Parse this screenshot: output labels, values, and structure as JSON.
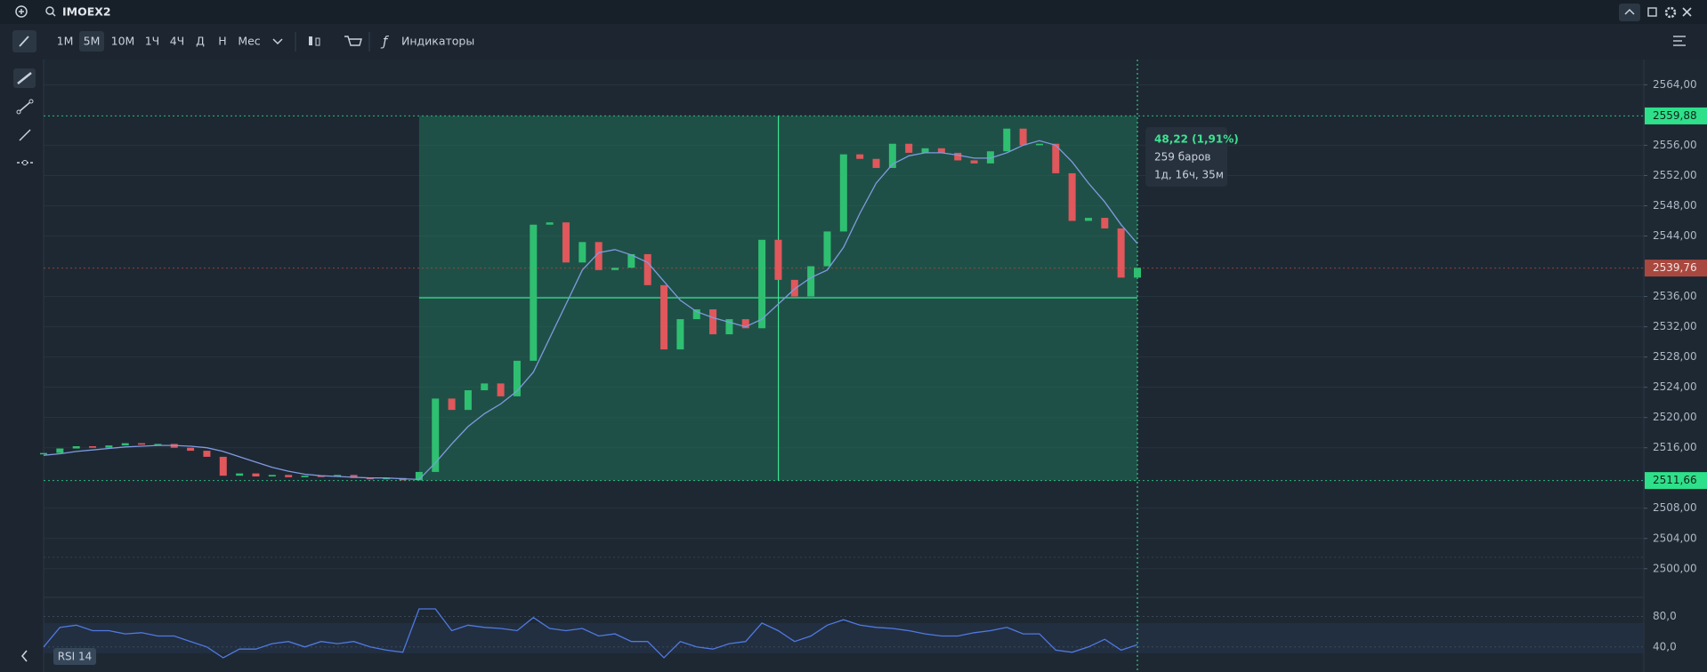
{
  "toolbar": {
    "symbol": "IMOEX2",
    "timeframes": [
      "1M",
      "5M",
      "10M",
      "1Ч",
      "4Ч",
      "Д",
      "Н",
      "Мес"
    ],
    "active_timeframe": 1,
    "indicators": "Индикаторы"
  },
  "chart_data": {
    "type": "candlestick",
    "close": [
      2515.3,
      2515.9,
      2516.2,
      2516.0,
      2516.3,
      2516.6,
      2516.4,
      2516.5,
      2516.0,
      2515.6,
      2514.8,
      2512.3,
      2512.6,
      2512.2,
      2512.4,
      2512.1,
      2512.3,
      2512.2,
      2512.4,
      2512.0,
      2511.9,
      2512.0,
      2511.7,
      2512.8,
      2522.5,
      2521.0,
      2523.6,
      2524.5,
      2522.8,
      2527.5,
      2545.5,
      2545.8,
      2540.5,
      2543.2,
      2539.5,
      2539.8,
      2541.6,
      2537.5,
      2529.0,
      2533.0,
      2534.3,
      2531.0,
      2533.0,
      2531.8,
      2543.5,
      2538.2,
      2536.0,
      2540.0,
      2544.6,
      2554.8,
      2554.2,
      2553.0,
      2556.2,
      2555.0,
      2555.6,
      2555.0,
      2554.0,
      2553.6,
      2555.2,
      2558.2,
      2556.0,
      2556.2,
      2552.3,
      2546.0,
      2546.4,
      2545.0,
      2538.5,
      2539.8
    ],
    "ma": [
      2515.0,
      2515.2,
      2515.5,
      2515.7,
      2515.9,
      2516.1,
      2516.2,
      2516.3,
      2516.3,
      2516.2,
      2516.0,
      2515.5,
      2514.8,
      2514.1,
      2513.4,
      2512.9,
      2512.5,
      2512.3,
      2512.2,
      2512.1,
      2512.0,
      2512.0,
      2511.9,
      2511.8,
      2514.0,
      2516.5,
      2518.8,
      2520.5,
      2521.8,
      2523.5,
      2526.0,
      2530.5,
      2535.0,
      2539.5,
      2541.8,
      2542.2,
      2541.5,
      2540.5,
      2538.0,
      2535.5,
      2534.0,
      2533.2,
      2532.6,
      2532.0,
      2533.0,
      2535.0,
      2537.0,
      2538.5,
      2539.5,
      2542.5,
      2547.0,
      2551.0,
      2553.5,
      2554.6,
      2555.0,
      2555.0,
      2554.7,
      2554.3,
      2554.3,
      2555.0,
      2556.0,
      2556.6,
      2556.0,
      2553.8,
      2551.0,
      2548.5,
      2545.5,
      2543.0
    ],
    "up_color": "#2fbf71",
    "down_color": "#e0575c",
    "ma_color": "#7f9be0",
    "ylim": [
      2496.45,
      2567.16
    ],
    "yticks": [
      {
        "value": 2564,
        "label": "2564,00"
      },
      {
        "value": 2556,
        "label": "2556,00"
      },
      {
        "value": 2552,
        "label": "2552,00"
      },
      {
        "value": 2548,
        "label": "2548,00"
      },
      {
        "value": 2544,
        "label": "2544,00"
      },
      {
        "value": 2536,
        "label": "2536,00"
      },
      {
        "value": 2532,
        "label": "2532,00"
      },
      {
        "value": 2528,
        "label": "2528,00"
      },
      {
        "value": 2524,
        "label": "2524,00"
      },
      {
        "value": 2520,
        "label": "2520,00"
      },
      {
        "value": 2516,
        "label": "2516,00"
      },
      {
        "value": 2508,
        "label": "2508,00"
      },
      {
        "value": 2504,
        "label": "2504,00"
      },
      {
        "value": 2500,
        "label": "2500,00"
      }
    ],
    "grid": true,
    "price_labels": [
      {
        "value": 2559.88,
        "label": "2559,88",
        "color": "#2ee08a"
      },
      {
        "value": 2539.76,
        "label": "2539,76",
        "color": "#a9483f"
      },
      {
        "value": 2511.66,
        "label": "2511,66",
        "color": "#2ee08a"
      }
    ],
    "measurement": {
      "change": "48,22 (1,91%)",
      "bars": "259 баров",
      "duration": "1д, 16ч, 35м"
    },
    "rsi": {
      "label": "RSI 14",
      "color": "#4f79e0",
      "values": [
        40,
        65.7,
        68.6,
        61.4,
        61.4,
        57.1,
        58.6,
        54.3,
        54.3,
        47.1,
        40,
        25.7,
        37.1,
        37.1,
        44.3,
        47.1,
        40,
        47.1,
        44.3,
        47.1,
        40,
        35.7,
        32.9,
        90,
        90,
        61.4,
        68.6,
        65.7,
        64.3,
        61.4,
        78.6,
        64.3,
        61.4,
        64.3,
        54.3,
        57.1,
        47.1,
        47.1,
        25.7,
        47.1,
        40,
        37.1,
        44.3,
        47.1,
        71.4,
        61.4,
        47.1,
        54.3,
        68.6,
        75.7,
        68.6,
        65.7,
        64.3,
        61.4,
        57.1,
        54.3,
        54.3,
        58.6,
        61.4,
        65.7,
        57.1,
        57.1,
        35.7,
        32.9,
        40,
        50,
        35.7,
        42.9
      ],
      "ylim": [
        7,
        104
      ],
      "yticks": [
        {
          "value": 80,
          "label": "80,0"
        },
        {
          "value": 40,
          "label": "40,0"
        }
      ]
    }
  }
}
